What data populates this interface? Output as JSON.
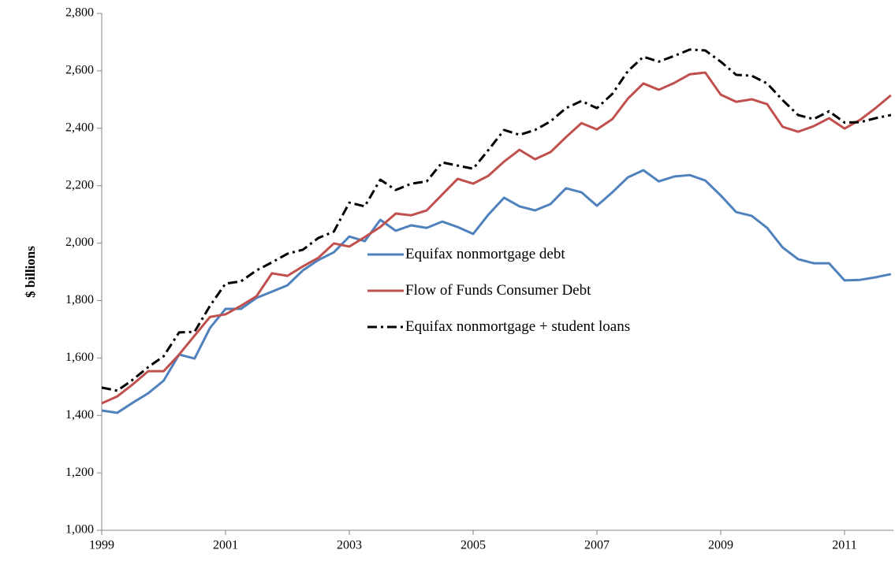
{
  "chart_data": {
    "type": "line",
    "ylabel": "$ billions",
    "x": [
      1999,
      1999.25,
      1999.5,
      1999.75,
      2000,
      2000.25,
      2000.5,
      2000.75,
      2001,
      2001.25,
      2001.5,
      2001.75,
      2002,
      2002.25,
      2002.5,
      2002.75,
      2003,
      2003.25,
      2003.5,
      2003.75,
      2004,
      2004.25,
      2004.5,
      2004.75,
      2005,
      2005.25,
      2005.5,
      2005.75,
      2006,
      2006.25,
      2006.5,
      2006.75,
      2007,
      2007.25,
      2007.5,
      2007.75,
      2008,
      2008.25,
      2008.5,
      2008.75,
      2009,
      2009.25,
      2009.5,
      2009.75,
      2010,
      2010.25,
      2010.5,
      2010.75,
      2011,
      2011.25,
      2011.5,
      2011.75
    ],
    "series": [
      {
        "name": "Equifax nonmortgage debt",
        "color": "#4f81bd",
        "dash": "solid",
        "values": [
          1417,
          1409,
          1444,
          1477,
          1521,
          1612,
          1598,
          1705,
          1771,
          1771,
          1809,
          1831,
          1853,
          1905,
          1941,
          1968,
          2023,
          2007,
          2081,
          2043,
          2062,
          2053,
          2075,
          2056,
          2032,
          2100,
          2158,
          2128,
          2114,
          2136,
          2191,
          2177,
          2130,
          2177,
          2229,
          2254,
          2215,
          2232,
          2237,
          2218,
          2166,
          2108,
          2095,
          2053,
          1985,
          1944,
          1930,
          1930,
          1870,
          1872,
          1881,
          1892
        ]
      },
      {
        "name": "Flow of Funds Consumer Debt",
        "color": "#c0504d",
        "dash": "solid",
        "values": [
          1442,
          1466,
          1508,
          1554,
          1554,
          1612,
          1678,
          1743,
          1752,
          1782,
          1815,
          1895,
          1886,
          1919,
          1949,
          1999,
          1988,
          2021,
          2056,
          2103,
          2097,
          2114,
          2169,
          2224,
          2207,
          2235,
          2284,
          2325,
          2292,
          2317,
          2369,
          2418,
          2396,
          2432,
          2503,
          2556,
          2534,
          2558,
          2588,
          2594,
          2517,
          2492,
          2501,
          2484,
          2405,
          2388,
          2407,
          2435,
          2399,
          2429,
          2470,
          2515
        ]
      },
      {
        "name": "Equifax nonmortgage + student loans",
        "color": "#000000",
        "dash": "dashdot",
        "values": [
          1497,
          1486,
          1524,
          1568,
          1606,
          1689,
          1691,
          1782,
          1859,
          1867,
          1905,
          1933,
          1963,
          1977,
          2018,
          2040,
          2141,
          2128,
          2221,
          2185,
          2207,
          2215,
          2281,
          2270,
          2259,
          2325,
          2394,
          2377,
          2394,
          2424,
          2470,
          2495,
          2470,
          2520,
          2599,
          2649,
          2632,
          2652,
          2674,
          2671,
          2632,
          2586,
          2583,
          2556,
          2498,
          2446,
          2432,
          2459,
          2420,
          2421,
          2435,
          2446
        ]
      }
    ],
    "xlim": [
      1999,
      2011.79
    ],
    "xticks": [
      1999,
      2001,
      2003,
      2005,
      2007,
      2009,
      2011
    ],
    "ylim": [
      1000,
      2800
    ],
    "yticks": [
      {
        "value": 1000,
        "label": "1,000"
      },
      {
        "value": 1200,
        "label": "1,200"
      },
      {
        "value": 1400,
        "label": "1,400"
      },
      {
        "value": 1600,
        "label": "1,600"
      },
      {
        "value": 1800,
        "label": "1,800"
      },
      {
        "value": 2000,
        "label": "2,000"
      },
      {
        "value": 2200,
        "label": "2,200"
      },
      {
        "value": 2400,
        "label": "2,400"
      },
      {
        "value": 2600,
        "label": "2,600"
      },
      {
        "value": 2800,
        "label": "2,800"
      }
    ],
    "grid": false
  }
}
